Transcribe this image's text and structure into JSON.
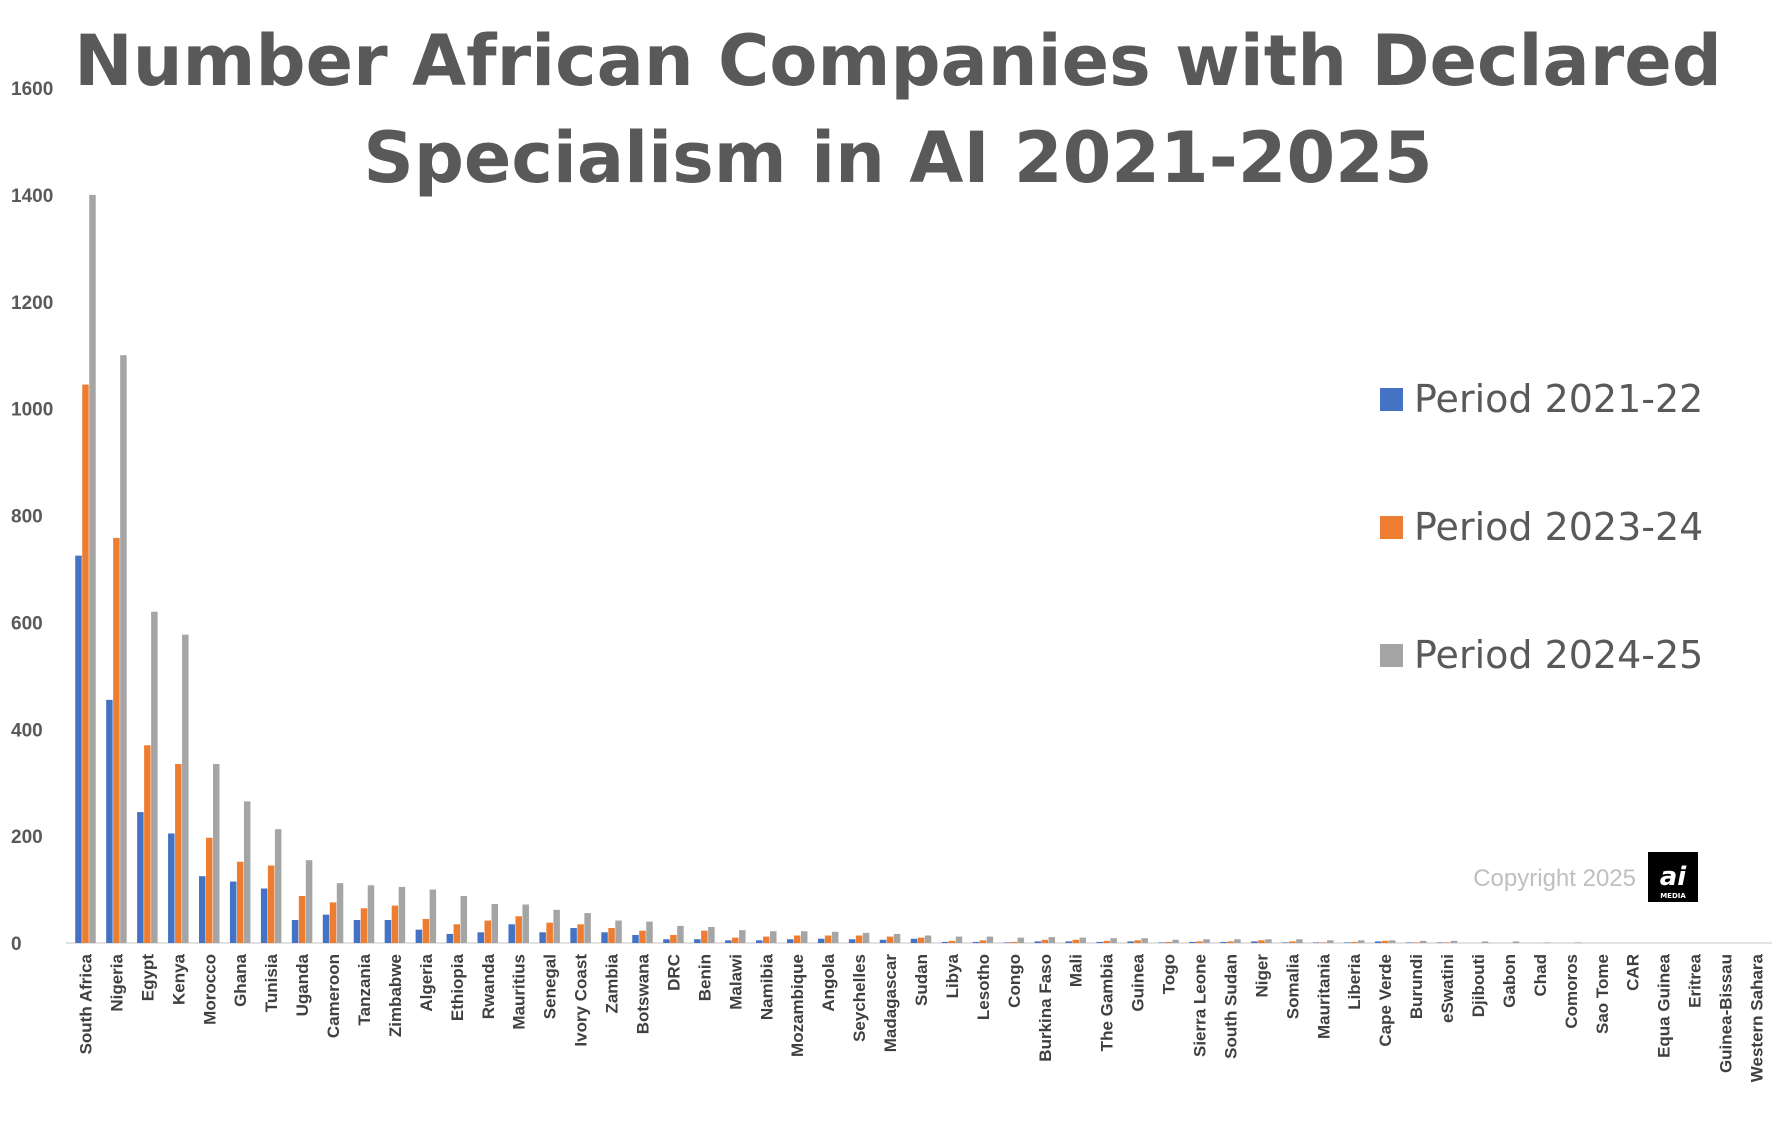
{
  "chart_data": {
    "type": "bar",
    "title": "Number African Companies with Declared Specialism in AI 2021-2025",
    "title_lines": [
      "Number African Companies with Declared",
      "Specialism in AI 2021-2025"
    ],
    "xlabel": "",
    "ylabel": "",
    "ylim": [
      0,
      1600
    ],
    "yticks": [
      "0",
      "200",
      "400",
      "600",
      "800",
      "1000",
      "1200",
      "1400",
      "1600"
    ],
    "grid": false,
    "legend_position": "right",
    "categories": [
      "South Africa",
      "Nigeria",
      "Egypt",
      "Kenya",
      "Morocco",
      "Ghana",
      "Tunisia",
      "Uganda",
      "Cameroon",
      "Tanzania",
      "Zimbabwe",
      "Algeria",
      "Ethiopia",
      "Rwanda",
      "Mauritius",
      "Senegal",
      "Ivory Coast",
      "Zambia",
      "Botswana",
      "DRC",
      "Benin",
      "Malawi",
      "Namibia",
      "Mozambique",
      "Angola",
      "Seychelles",
      "Madagascar",
      "Sudan",
      "Libya",
      "Lesotho",
      "Congo",
      "Burkina Faso",
      "Mali",
      "The Gambia",
      "Guinea",
      "Togo",
      "Sierra Leone",
      "South Sudan",
      "Niger",
      "Somalia",
      "Mauritania",
      "Liberia",
      "Cape Verde",
      "Burundi",
      "eSwatini",
      "Djibouti",
      "Gabon",
      "Chad",
      "Comoros",
      "Sao Tome",
      "CAR",
      "Equa Guinea",
      "Eritrea",
      "Guinea-Bissau",
      "Western Sahara"
    ],
    "series": [
      {
        "name": "Period 2021-22",
        "color": "#4472c4",
        "values": [
          725,
          455,
          245,
          205,
          125,
          115,
          102,
          43,
          53,
          43,
          43,
          25,
          17,
          20,
          35,
          20,
          28,
          20,
          15,
          7,
          7,
          5,
          5,
          7,
          8,
          7,
          6,
          8,
          2,
          2,
          1,
          3,
          3,
          2,
          3,
          1,
          2,
          2,
          3,
          1,
          1,
          1,
          3,
          1,
          1,
          0,
          0,
          0,
          0,
          0,
          0,
          0,
          0,
          0,
          0
        ]
      },
      {
        "name": "Period 2023-24",
        "color": "#ed7d31",
        "values": [
          1045,
          758,
          370,
          335,
          197,
          152,
          145,
          88,
          76,
          65,
          70,
          45,
          35,
          42,
          50,
          38,
          35,
          28,
          23,
          15,
          23,
          10,
          12,
          14,
          14,
          14,
          12,
          10,
          4,
          5,
          2,
          6,
          6,
          4,
          5,
          2,
          3,
          3,
          5,
          3,
          1,
          2,
          4,
          1,
          1,
          0,
          0,
          0,
          0,
          0,
          0,
          0,
          0,
          0,
          0
        ]
      },
      {
        "name": "Period 2024-25",
        "color": "#a5a5a5",
        "values": [
          1400,
          1100,
          620,
          577,
          335,
          265,
          213,
          155,
          112,
          108,
          105,
          100,
          88,
          73,
          72,
          62,
          56,
          42,
          40,
          32,
          30,
          24,
          22,
          22,
          21,
          19,
          17,
          14,
          12,
          12,
          10,
          11,
          10,
          9,
          9,
          6,
          7,
          7,
          7,
          7,
          5,
          5,
          5,
          4,
          4,
          3,
          3,
          1,
          1,
          0,
          0,
          0,
          0,
          0,
          0
        ]
      }
    ]
  },
  "copyright": "Copyright 2025",
  "logo": {
    "mark": "ai",
    "sub": "MEDIA"
  }
}
